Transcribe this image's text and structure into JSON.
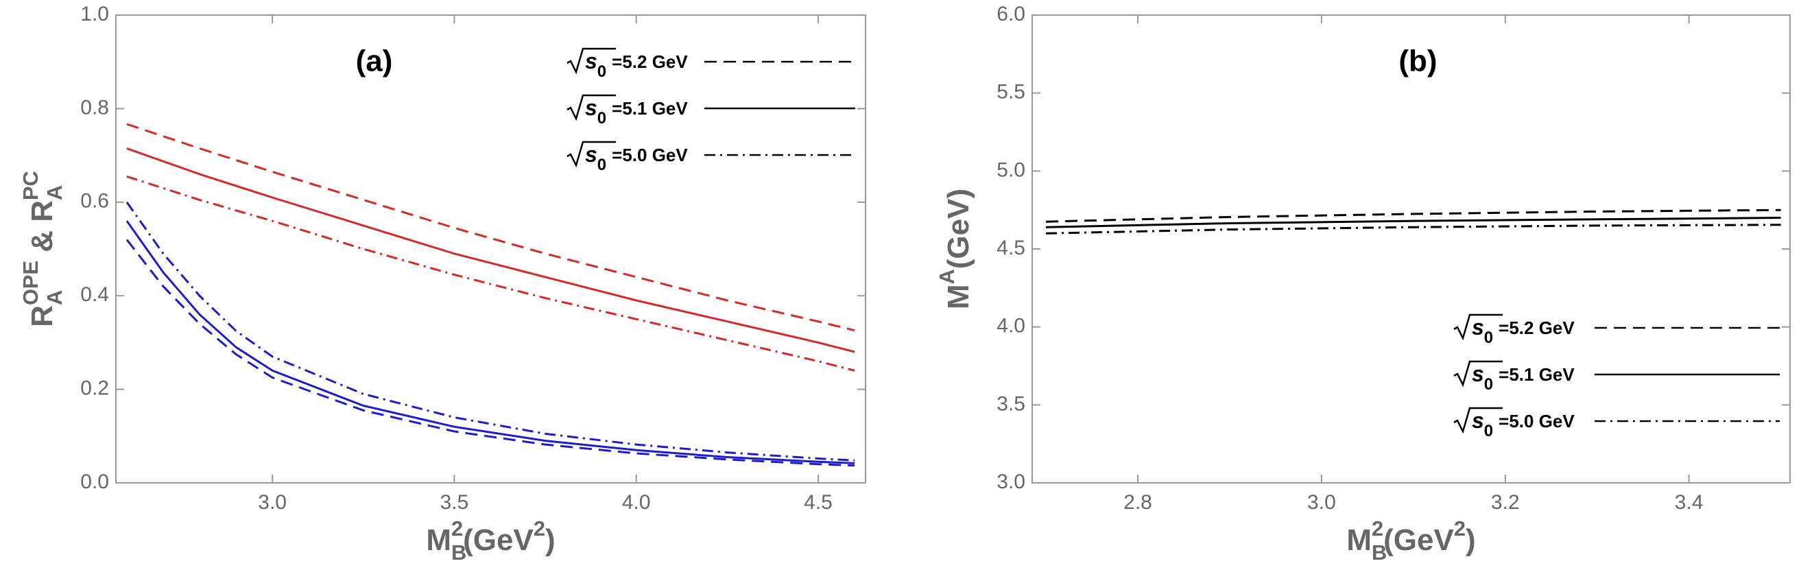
{
  "chart_data": [
    {
      "type": "line",
      "panel_label": "(a)",
      "x_label": [
        {
          "text": "M"
        },
        {
          "text": "B",
          "shift": "sub"
        },
        {
          "text": "2",
          "shift": "sup"
        },
        {
          "text": "(GeV"
        },
        {
          "text": "2",
          "shift": "sup"
        },
        {
          "text": ")"
        }
      ],
      "y_label": [
        {
          "text": "R"
        },
        {
          "text": "A",
          "shift": "sub"
        },
        {
          "text": "OPE",
          "shift": "sup"
        },
        {
          "text": " & "
        },
        {
          "text": "R"
        },
        {
          "text": "A",
          "shift": "sub"
        },
        {
          "text": "PC",
          "shift": "sup"
        }
      ],
      "xlim": [
        2.57,
        4.63
      ],
      "ylim": [
        0,
        1
      ],
      "xticks": [
        {
          "value": 3.0,
          "label": "3.0"
        },
        {
          "value": 3.5,
          "label": "3.5"
        },
        {
          "value": 4.0,
          "label": "4.0"
        },
        {
          "value": 4.5,
          "label": "4.5"
        }
      ],
      "yticks": [
        {
          "value": 0,
          "label": "0.0"
        },
        {
          "value": 0.2,
          "label": "0.2"
        },
        {
          "value": 0.4,
          "label": "0.4"
        },
        {
          "value": 0.6,
          "label": "0.6"
        },
        {
          "value": 0.8,
          "label": "0.8"
        },
        {
          "value": 1.0,
          "label": "1.0"
        }
      ],
      "legend_position": "top-right",
      "legend": [
        {
          "radicand": "s",
          "sub": "0",
          "text": "=5.2 GeV",
          "dash": "dashed"
        },
        {
          "radicand": "s",
          "sub": "0",
          "text": "=5.1 GeV",
          "dash": "solid"
        },
        {
          "radicand": "s",
          "sub": "0",
          "text": "=5.0 GeV",
          "dash": "dashdot"
        }
      ],
      "series": [
        {
          "color": "#d42a2a",
          "dash": "dashed",
          "x": [
            2.6,
            2.8,
            3.0,
            3.25,
            3.5,
            3.75,
            4.0,
            4.25,
            4.5,
            4.6
          ],
          "values": [
            0.767,
            0.715,
            0.665,
            0.605,
            0.545,
            0.49,
            0.44,
            0.39,
            0.345,
            0.326
          ]
        },
        {
          "color": "#d42a2a",
          "dash": "solid",
          "x": [
            2.6,
            2.8,
            3.0,
            3.25,
            3.5,
            3.75,
            4.0,
            4.25,
            4.5,
            4.6
          ],
          "values": [
            0.715,
            0.66,
            0.61,
            0.55,
            0.49,
            0.44,
            0.39,
            0.345,
            0.3,
            0.28
          ]
        },
        {
          "color": "#d42a2a",
          "dash": "dashdot",
          "x": [
            2.6,
            2.8,
            3.0,
            3.25,
            3.5,
            3.75,
            4.0,
            4.25,
            4.5,
            4.6
          ],
          "values": [
            0.655,
            0.605,
            0.56,
            0.5,
            0.445,
            0.395,
            0.35,
            0.305,
            0.26,
            0.24
          ]
        },
        {
          "color": "#1c1cc8",
          "dash": "dashed",
          "x": [
            2.6,
            2.7,
            2.8,
            2.9,
            3.0,
            3.25,
            3.5,
            3.75,
            4.0,
            4.25,
            4.5,
            4.6
          ],
          "values": [
            0.52,
            0.42,
            0.34,
            0.275,
            0.225,
            0.155,
            0.11,
            0.082,
            0.063,
            0.05,
            0.04,
            0.037
          ]
        },
        {
          "color": "#1c1cc8",
          "dash": "solid",
          "x": [
            2.6,
            2.7,
            2.8,
            2.9,
            3.0,
            3.25,
            3.5,
            3.75,
            4.0,
            4.25,
            4.5,
            4.6
          ],
          "values": [
            0.56,
            0.45,
            0.36,
            0.29,
            0.24,
            0.165,
            0.12,
            0.09,
            0.07,
            0.055,
            0.045,
            0.042
          ]
        },
        {
          "color": "#1c1cc8",
          "dash": "dashdot",
          "x": [
            2.6,
            2.7,
            2.8,
            2.9,
            3.0,
            3.25,
            3.5,
            3.75,
            4.0,
            4.25,
            4.5,
            4.6
          ],
          "values": [
            0.6,
            0.49,
            0.4,
            0.325,
            0.27,
            0.19,
            0.14,
            0.105,
            0.082,
            0.065,
            0.052,
            0.048
          ]
        }
      ]
    },
    {
      "type": "line",
      "panel_label": "(b)",
      "x_label": [
        {
          "text": "M"
        },
        {
          "text": "B",
          "shift": "sub"
        },
        {
          "text": "2",
          "shift": "sup"
        },
        {
          "text": "(GeV"
        },
        {
          "text": "2",
          "shift": "sup"
        },
        {
          "text": ")"
        }
      ],
      "y_label": [
        {
          "text": "M"
        },
        {
          "text": "A",
          "shift": "sup"
        },
        {
          "text": "(GeV)"
        }
      ],
      "xlim": [
        2.685,
        3.51
      ],
      "ylim": [
        3,
        6
      ],
      "xticks": [
        {
          "value": 2.8,
          "label": "2.8"
        },
        {
          "value": 3.0,
          "label": "3.0"
        },
        {
          "value": 3.2,
          "label": "3.2"
        },
        {
          "value": 3.4,
          "label": "3.4"
        }
      ],
      "yticks": [
        {
          "value": 3.0,
          "label": "3.0"
        },
        {
          "value": 3.5,
          "label": "3.5"
        },
        {
          "value": 4.0,
          "label": "4.0"
        },
        {
          "value": 4.5,
          "label": "4.5"
        },
        {
          "value": 5.0,
          "label": "5.0"
        },
        {
          "value": 5.5,
          "label": "5.5"
        },
        {
          "value": 6.0,
          "label": "6.0"
        }
      ],
      "legend_position": "bottom-right",
      "legend": [
        {
          "radicand": "s",
          "sub": "0",
          "text": "=5.2 GeV",
          "dash": "dashed"
        },
        {
          "radicand": "s",
          "sub": "0",
          "text": "=5.1 GeV",
          "dash": "solid"
        },
        {
          "radicand": "s",
          "sub": "0",
          "text": "=5.0 GeV",
          "dash": "dashdot"
        }
      ],
      "series": [
        {
          "color": "#000000",
          "dash": "dashed",
          "x": [
            2.7,
            2.9,
            3.1,
            3.3,
            3.5
          ],
          "values": [
            4.675,
            4.705,
            4.725,
            4.74,
            4.75
          ]
        },
        {
          "color": "#000000",
          "dash": "solid",
          "x": [
            2.7,
            2.9,
            3.1,
            3.3,
            3.5
          ],
          "values": [
            4.64,
            4.665,
            4.68,
            4.69,
            4.7
          ]
        },
        {
          "color": "#000000",
          "dash": "dashdot",
          "x": [
            2.7,
            2.9,
            3.1,
            3.3,
            3.5
          ],
          "values": [
            4.6,
            4.625,
            4.64,
            4.65,
            4.655
          ]
        }
      ]
    }
  ]
}
